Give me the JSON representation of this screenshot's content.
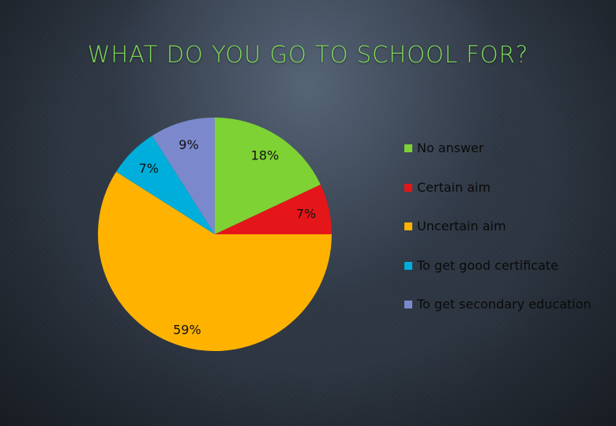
{
  "title": "WHAT DO YOU GO TO SCHOOL FOR?",
  "chart_data": {
    "type": "pie",
    "title": "WHAT DO YOU GO TO SCHOOL FOR?",
    "start_angle_deg": 0,
    "direction": "clockwise",
    "legend_position": "right",
    "slices": [
      {
        "label": "No answer",
        "value": 18,
        "data_label": "18%",
        "color": "#7ed234"
      },
      {
        "label": "Certain aim",
        "value": 7,
        "data_label": "7%",
        "color": "#e5161a"
      },
      {
        "label": "Uncertain aim",
        "value": 59,
        "data_label": "59%",
        "color": "#ffb300"
      },
      {
        "label": "To get good certificate",
        "value": 7,
        "data_label": "7%",
        "color": "#00aedb"
      },
      {
        "label": "To get secondary education",
        "value": 9,
        "data_label": "9%",
        "color": "#7b89cc"
      }
    ]
  },
  "colors": {
    "title": "#7ed957",
    "data_label": "#111111",
    "legend_text": "#0a0a0a"
  }
}
